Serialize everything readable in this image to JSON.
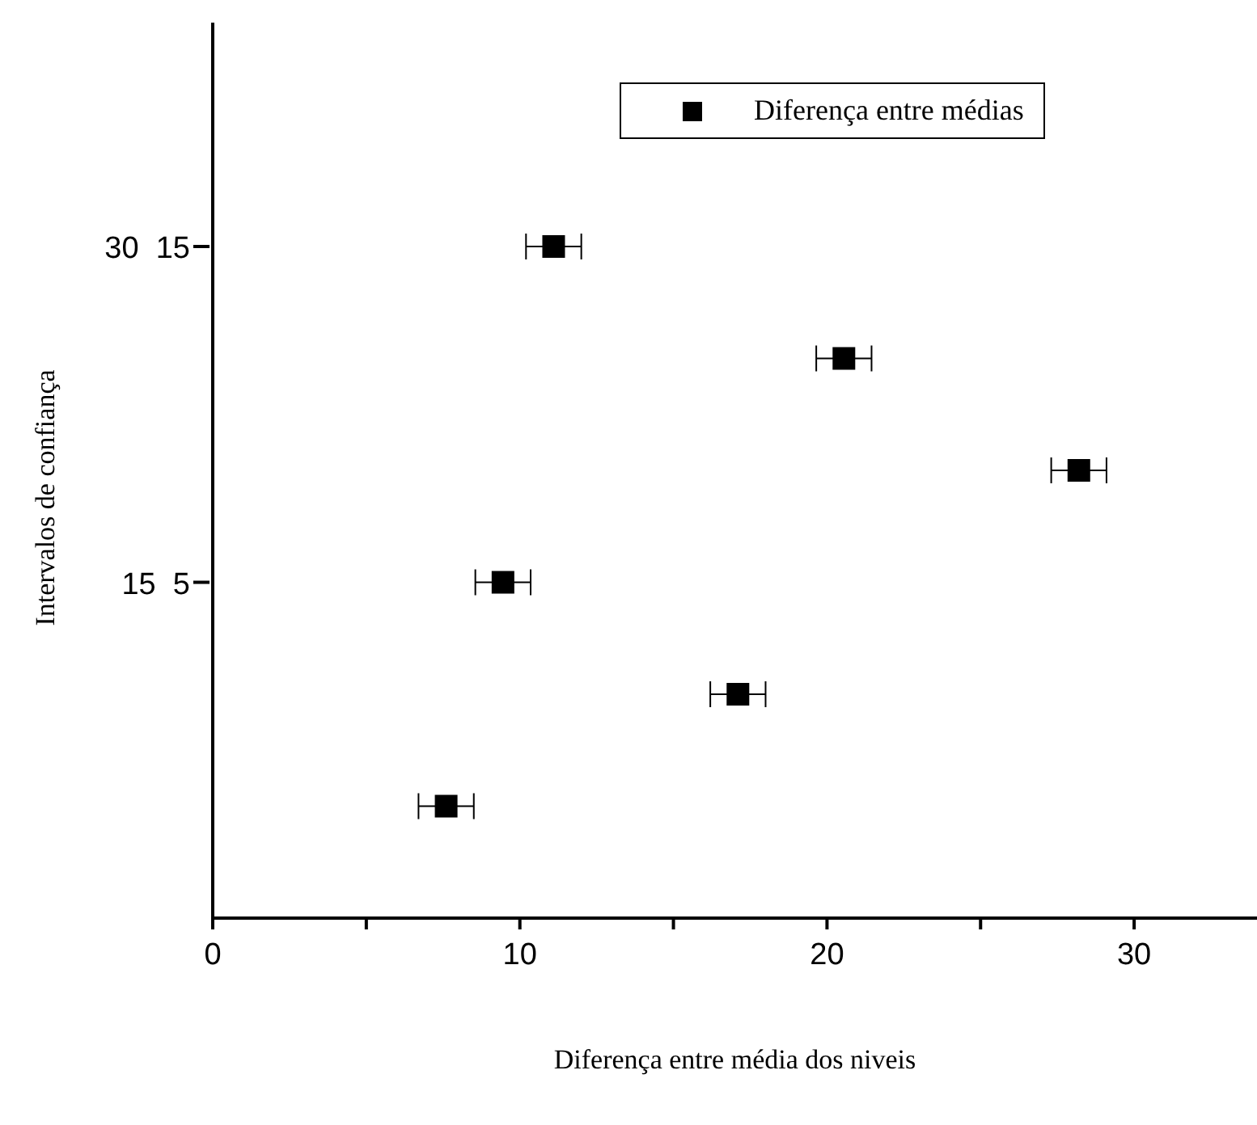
{
  "chart_data": {
    "type": "scatter",
    "orientation": "horizontal",
    "xlabel": "Diferença entre média  dos niveis",
    "ylabel": "Intervalos de confiança",
    "categories": [
      null,
      "30  15",
      null,
      null,
      "15  5",
      null,
      null
    ],
    "series": [
      {
        "name": "Diferença entre médias",
        "color": "#000000",
        "values": [
          null,
          11.1,
          20.55,
          28.2,
          9.45,
          17.1,
          7.6
        ],
        "errors": [
          null,
          0.9,
          0.9,
          0.9,
          0.9,
          0.9,
          0.9
        ]
      }
    ],
    "xlim": [
      0,
      34
    ],
    "xticks": [
      0,
      {
        "value": 5,
        "label": null
      },
      10,
      {
        "value": 15,
        "label": null
      },
      20,
      {
        "value": 25,
        "label": null
      },
      30
    ],
    "marker": "square",
    "grid": false,
    "legend": "top right"
  }
}
